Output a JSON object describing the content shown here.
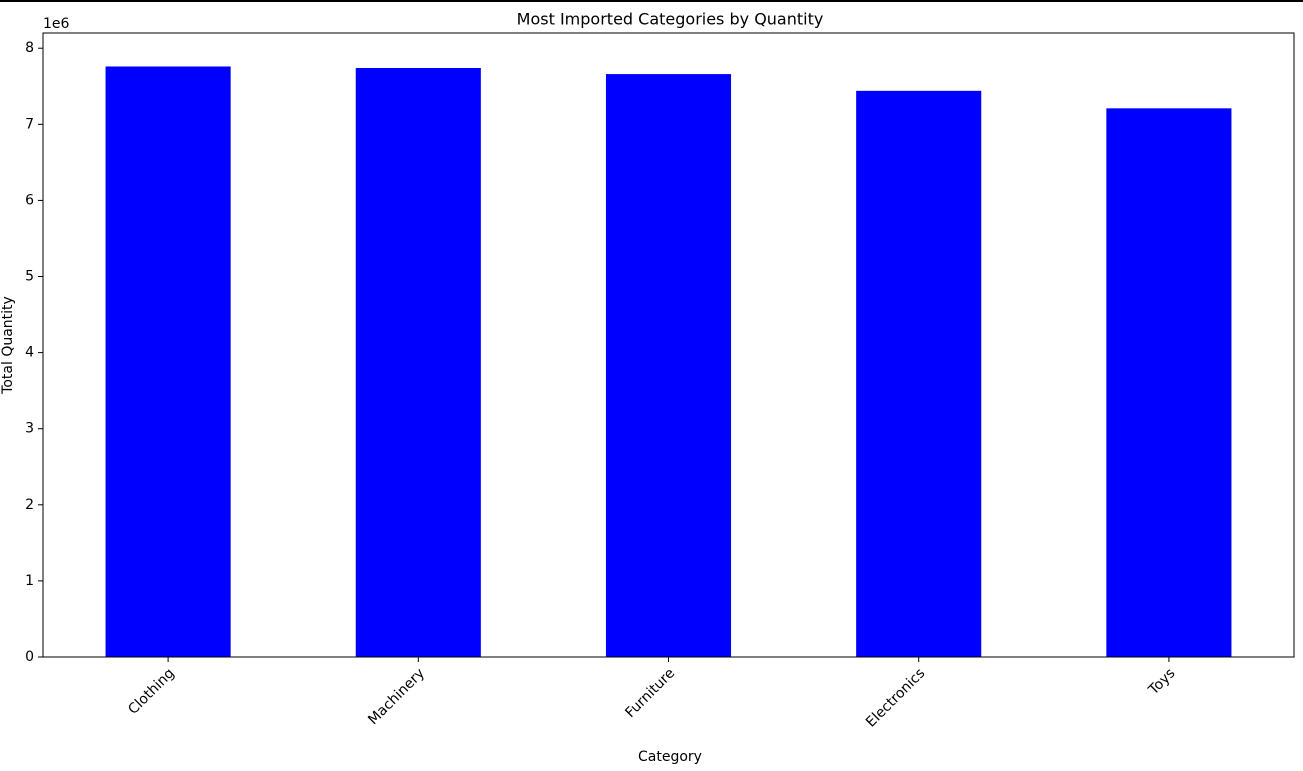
{
  "chart_data": {
    "type": "bar",
    "title": "Most Imported Categories by Quantity",
    "x_label": "Category",
    "y_label": "Total Quantity",
    "y_offset_label": "1e6",
    "categories": [
      "Clothing",
      "Machinery",
      "Furniture",
      "Electronics",
      "Toys"
    ],
    "values": [
      7.76,
      7.74,
      7.66,
      7.44,
      7.21
    ],
    "color": "#0000ff",
    "ylim": [
      0,
      8.2
    ],
    "yticks": [
      0,
      1,
      2,
      3,
      4,
      5,
      6,
      7,
      8
    ],
    "grid": false
  }
}
